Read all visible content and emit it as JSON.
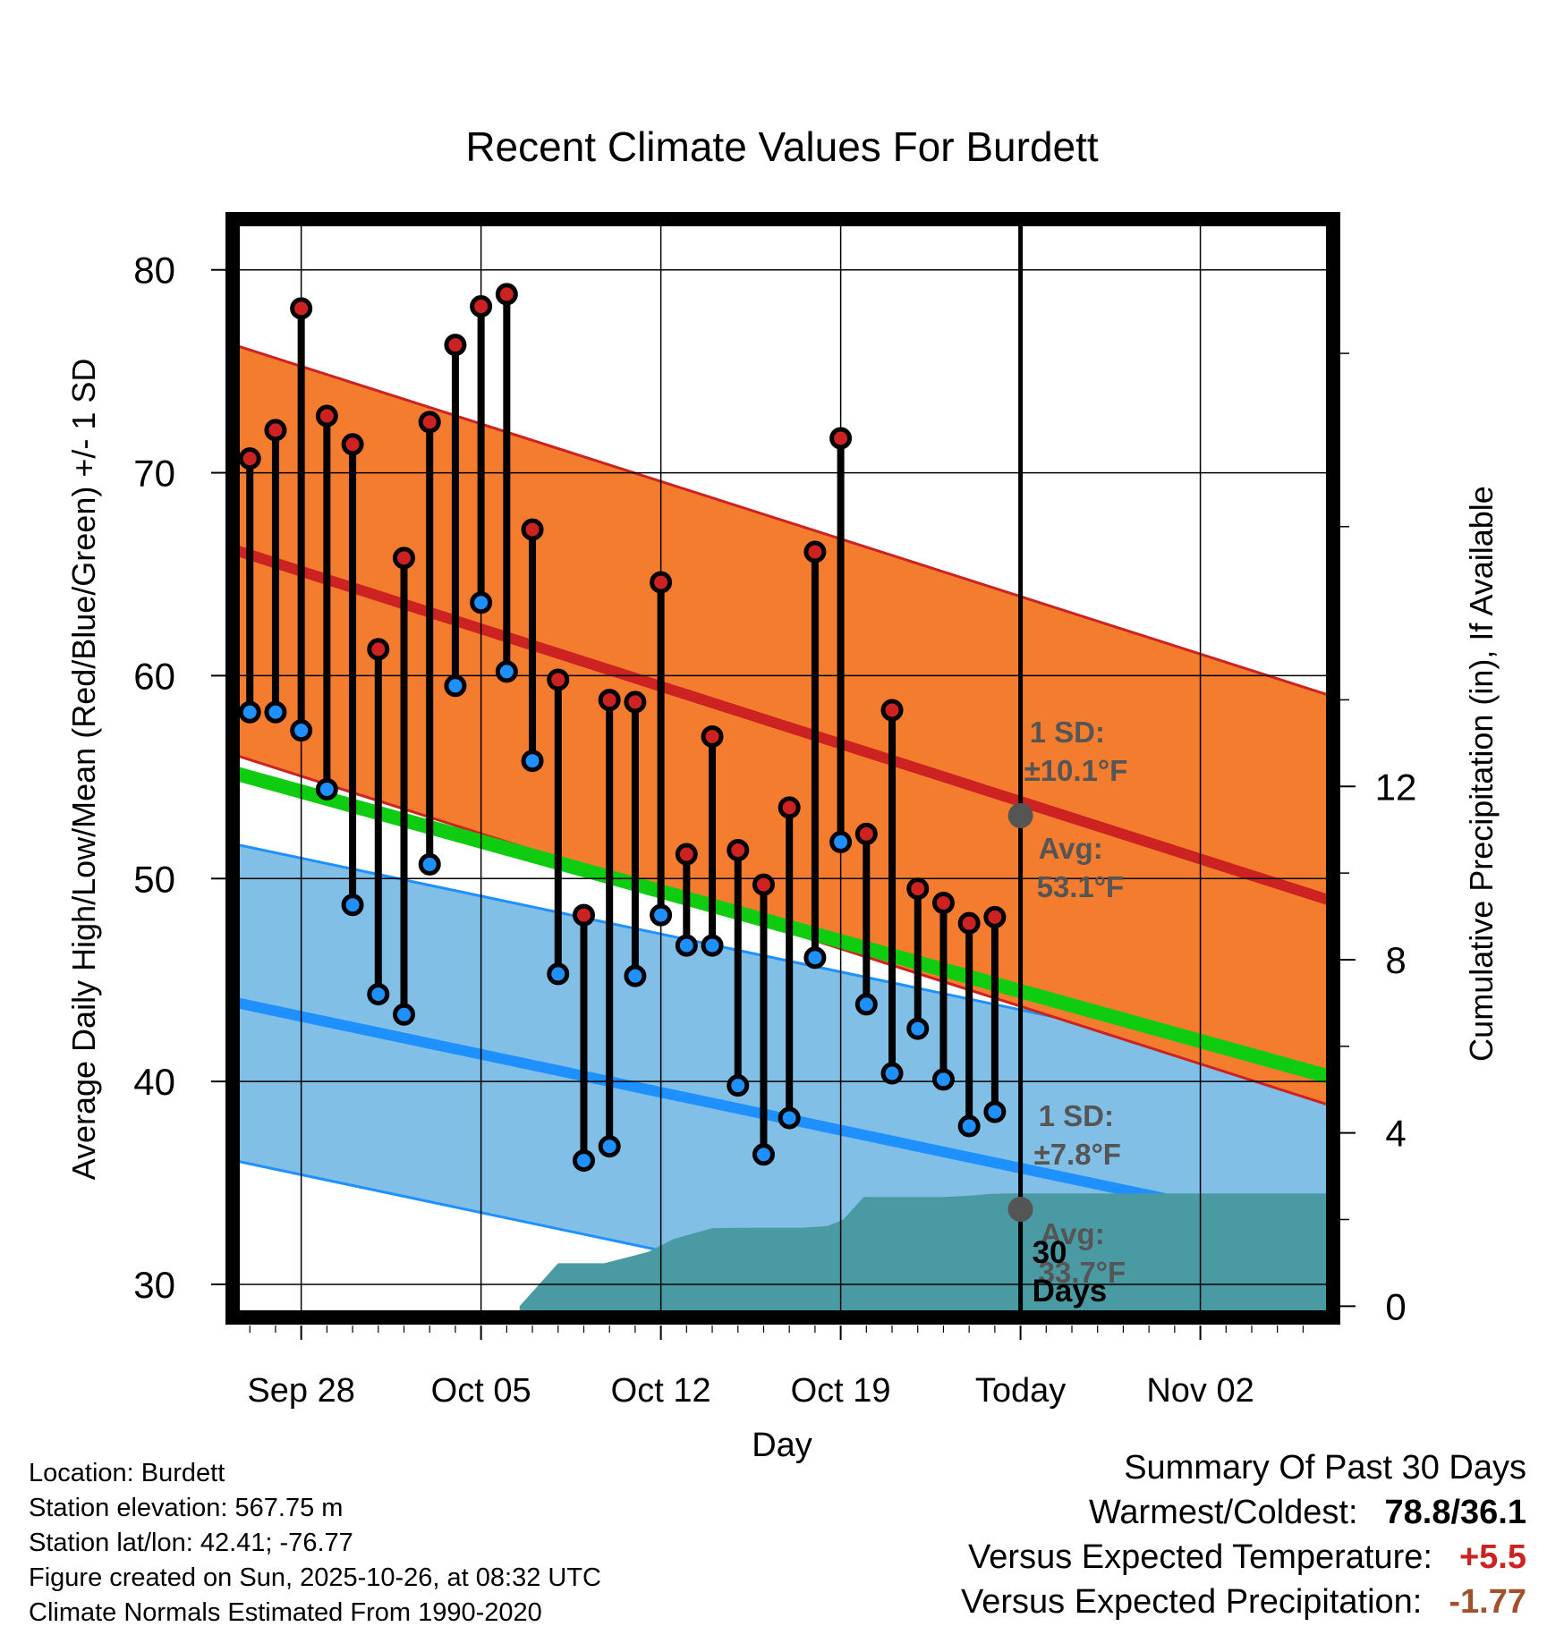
{
  "chart_data": {
    "type": "line",
    "title": "Recent Climate Values For Burdett",
    "xlabel": "Day",
    "ylabel": "Average Daily High/Low/Mean (Red/Blue/Green) +/- 1 SD",
    "y2label": "Cumulative Precipitation (in), If Available",
    "xlim": [
      -2.6,
      40.1
    ],
    "ylim": [
      28.5,
      82.5
    ],
    "y2lim": [
      -0.2,
      25.1
    ],
    "x_ticks": [
      {
        "x": 0,
        "label": "Sep 28"
      },
      {
        "x": 7,
        "label": "Oct 05"
      },
      {
        "x": 14,
        "label": "Oct 12"
      },
      {
        "x": 21,
        "label": "Oct 19"
      },
      {
        "x": 28,
        "label": "Today"
      },
      {
        "x": 35,
        "label": "Nov 02"
      }
    ],
    "y_ticks": [
      30,
      40,
      50,
      60,
      70,
      80
    ],
    "y2_ticks": [
      0,
      4,
      8,
      12
    ],
    "today_x": 28,
    "normal_high": {
      "start": 66.2,
      "end": 48.9,
      "sd": 10.1,
      "color": "#cc2222"
    },
    "normal_low": {
      "start": 43.9,
      "end": 32.5,
      "sd": 7.8,
      "color": "#1e90ff"
    },
    "normal_mean": {
      "start": 55.2,
      "end": 40.2,
      "color": "#10cc10"
    },
    "high_band_color": "#f47c2e",
    "low_band_color": "#82bfe6",
    "precip_color": "#4a9aa4",
    "series": [
      {
        "name": "High",
        "color": "#cc2222",
        "x": [
          -2,
          -1,
          0,
          1,
          2,
          3,
          4,
          5,
          6,
          7,
          8,
          9,
          10,
          11,
          12,
          13,
          14,
          15,
          16,
          17,
          18,
          19,
          20,
          21,
          22,
          23,
          24,
          25,
          26,
          27
        ],
        "values": [
          70.7,
          72.1,
          78.1,
          72.8,
          71.4,
          61.3,
          65.8,
          72.5,
          76.3,
          78.2,
          78.8,
          67.2,
          59.8,
          48.2,
          58.8,
          58.7,
          64.6,
          51.2,
          57.0,
          51.4,
          49.7,
          53.5,
          66.1,
          71.7,
          52.2,
          58.3,
          49.5,
          48.8,
          47.8,
          48.1
        ]
      },
      {
        "name": "Low",
        "color": "#1e90ff",
        "x": [
          -2,
          -1,
          0,
          1,
          2,
          3,
          4,
          5,
          6,
          7,
          8,
          9,
          10,
          11,
          12,
          13,
          14,
          15,
          16,
          17,
          18,
          19,
          20,
          21,
          22,
          23,
          24,
          25,
          26,
          27
        ],
        "values": [
          58.2,
          58.2,
          57.3,
          54.4,
          48.7,
          44.3,
          43.3,
          50.7,
          59.5,
          63.6,
          60.2,
          55.8,
          45.3,
          36.1,
          36.8,
          45.2,
          48.2,
          46.7,
          46.7,
          39.8,
          36.4,
          38.2,
          46.1,
          51.8,
          43.8,
          40.4,
          42.6,
          40.1,
          37.8,
          38.5
        ]
      },
      {
        "name": "Cumulative Precipitation",
        "color": "#4a9aa4",
        "x": [
          8.5,
          10,
          11.8,
          13.5,
          14.5,
          16,
          17.5,
          19.5,
          20.5,
          21.1,
          21.9,
          23.3,
          25,
          26,
          26.8,
          27.4,
          28,
          40.1
        ],
        "values": [
          0,
          0.99,
          0.99,
          1.25,
          1.55,
          1.8,
          1.81,
          1.81,
          1.85,
          2.0,
          2.52,
          2.52,
          2.52,
          2.55,
          2.59,
          2.6,
          2.6,
          2.6
        ]
      }
    ],
    "annotations": {
      "high_sd_label": "1 SD:",
      "high_sd_value": "±10.1°F",
      "high_avg_label": "Avg:",
      "high_avg_value": "53.1°F",
      "low_sd_label": "1 SD:",
      "low_sd_value": "±7.8°F",
      "low_avg_label": "Avg:",
      "low_avg_value": "33.7°F",
      "precip_days_line1": "30",
      "precip_days_line2": "Days",
      "today_high_avg": 53.1,
      "today_low_avg": 33.7
    }
  },
  "footer": {
    "location": "Location: Burdett",
    "elevation": "Station elevation: 567.75 m",
    "latlon": "Station lat/lon: 42.41; -76.77",
    "created": "Figure created on Sun, 2025-10-26, at 08:32 UTC",
    "normals": "Climate Normals Estimated From 1990-2020"
  },
  "summary": {
    "title": "Summary Of Past 30 Days",
    "warmest_coldest_label": "Warmest/Coldest:",
    "warmest_coldest_value": "78.8/36.1",
    "temp_label": "Versus Expected Temperature:",
    "temp_value": "+5.5",
    "temp_color": "#cc2222",
    "precip_label": "Versus Expected Precipitation:",
    "precip_value": "-1.77",
    "precip_color": "#a0522d"
  }
}
